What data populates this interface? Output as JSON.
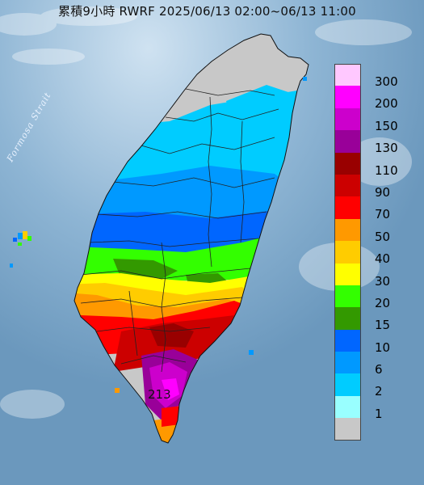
{
  "header": {
    "title": "累積9小時 RWRF 2025/06/13 02:00~06/13 11:00"
  },
  "map": {
    "strait_label": "Formosa Strait",
    "max_label": "213",
    "ocean_color": "#6f9cc0",
    "land_color": "#c8c8c8"
  },
  "legend": {
    "items": [
      {
        "label": "300",
        "color": "#ffc8ff"
      },
      {
        "label": "200",
        "color": "#ff00ff"
      },
      {
        "label": "150",
        "color": "#cc00cc"
      },
      {
        "label": "130",
        "color": "#990099"
      },
      {
        "label": "110",
        "color": "#990000"
      },
      {
        "label": "90",
        "color": "#cc0000"
      },
      {
        "label": "70",
        "color": "#ff0000"
      },
      {
        "label": "50",
        "color": "#ff9900"
      },
      {
        "label": "40",
        "color": "#ffcc00"
      },
      {
        "label": "30",
        "color": "#ffff00"
      },
      {
        "label": "20",
        "color": "#33ff00"
      },
      {
        "label": "15",
        "color": "#339900"
      },
      {
        "label": "10",
        "color": "#0066ff"
      },
      {
        "label": "6",
        "color": "#0099ff"
      },
      {
        "label": "2",
        "color": "#00ccff"
      },
      {
        "label": "1",
        "color": "#99ffff"
      },
      {
        "label": "",
        "color": "#c8c8c8"
      }
    ]
  }
}
